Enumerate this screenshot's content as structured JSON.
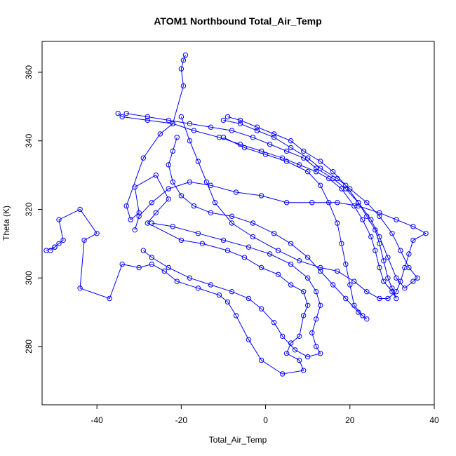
{
  "chart_data": {
    "type": "scatter",
    "title": "ATOM1 Northbound Total_Air_Temp",
    "xlabel": "Total_Air_Temp",
    "ylabel": "Theta (K)",
    "xlim": [
      -53,
      40
    ],
    "ylim": [
      263,
      369
    ],
    "xticks": [
      -40,
      -20,
      0,
      20,
      40
    ],
    "yticks": [
      280,
      300,
      320,
      340,
      360
    ],
    "grid": false,
    "legend": "none",
    "series": [
      {
        "color": "#0000ff",
        "marker": "open-circle",
        "connected": true,
        "points": [
          [
            -19,
            365
          ],
          [
            -19.5,
            363.5
          ],
          [
            -20,
            361
          ],
          [
            -19.5,
            356
          ],
          [
            -22,
            345
          ],
          [
            -25,
            342
          ],
          [
            -29,
            335
          ],
          [
            -33,
            321
          ],
          [
            -32,
            317
          ],
          [
            -30,
            319
          ],
          [
            -31,
            326.5
          ],
          [
            -26,
            330
          ],
          [
            -23,
            323
          ],
          [
            -26,
            319
          ],
          [
            -28,
            316
          ],
          [
            -20,
            311
          ],
          [
            -15,
            310
          ],
          [
            -9,
            308
          ],
          [
            -5,
            306
          ],
          [
            -1,
            303
          ],
          [
            3,
            301
          ],
          [
            6,
            298
          ],
          [
            9,
            296
          ],
          [
            10,
            292
          ],
          [
            9,
            289
          ],
          [
            8,
            283
          ],
          [
            6,
            281
          ],
          [
            5,
            278
          ],
          [
            8,
            276
          ],
          [
            9,
            273
          ],
          [
            4,
            272
          ],
          [
            -1,
            276
          ],
          [
            -4,
            282
          ],
          [
            -7,
            289
          ],
          [
            -9,
            293
          ],
          [
            -11,
            295
          ],
          [
            -16,
            297
          ],
          [
            -21,
            299
          ],
          [
            -24,
            302
          ],
          [
            -27,
            304
          ],
          [
            -30,
            303
          ],
          [
            -34,
            304
          ],
          [
            -37,
            294
          ],
          [
            -44,
            297
          ],
          [
            -43,
            311
          ],
          [
            -40,
            313
          ],
          [
            -44,
            320
          ],
          [
            -49,
            317
          ],
          [
            -48,
            311
          ],
          [
            -49,
            310
          ],
          [
            -51,
            308
          ],
          [
            -50,
            309
          ],
          [
            -52,
            308
          ],
          [
            -50,
            309
          ]
        ]
      },
      {
        "color": "#0000ff",
        "marker": "open-circle",
        "connected": true,
        "points": [
          [
            -35,
            348
          ],
          [
            -34,
            347
          ],
          [
            -28,
            346
          ],
          [
            -22,
            345
          ],
          [
            -17,
            343
          ],
          [
            -11,
            341
          ],
          [
            -6,
            339
          ],
          [
            -1,
            337
          ],
          [
            4,
            335
          ],
          [
            8,
            333
          ],
          [
            12,
            331
          ],
          [
            15,
            329
          ],
          [
            18,
            326
          ],
          [
            21,
            321
          ],
          [
            23,
            317
          ],
          [
            25,
            312
          ],
          [
            26,
            308
          ],
          [
            27,
            303
          ],
          [
            28,
            299
          ],
          [
            30,
            296
          ],
          [
            31,
            294
          ],
          [
            30,
            297
          ],
          [
            29,
            300
          ],
          [
            28,
            305
          ],
          [
            27,
            310
          ],
          [
            26,
            314
          ],
          [
            24,
            318
          ],
          [
            22,
            322
          ],
          [
            19,
            326
          ],
          [
            16,
            329
          ],
          [
            12,
            332
          ],
          [
            9,
            335
          ],
          [
            5,
            337
          ],
          [
            1,
            339
          ],
          [
            -3,
            341
          ],
          [
            -8,
            343
          ],
          [
            -13,
            344
          ],
          [
            -18,
            345
          ],
          [
            -23,
            346
          ],
          [
            -28,
            347
          ],
          [
            -33,
            348
          ]
        ]
      },
      {
        "color": "#0000ff",
        "marker": "open-circle",
        "connected": true,
        "points": [
          [
            -9,
            347
          ],
          [
            -6,
            346
          ],
          [
            -2,
            344
          ],
          [
            2,
            342
          ],
          [
            6,
            340
          ],
          [
            9,
            337
          ],
          [
            13,
            334
          ],
          [
            16,
            331
          ],
          [
            19,
            327
          ],
          [
            22,
            322
          ],
          [
            25,
            317
          ],
          [
            27,
            312
          ],
          [
            29,
            306
          ],
          [
            31,
            300
          ],
          [
            33,
            297
          ],
          [
            35,
            299
          ],
          [
            36,
            300
          ],
          [
            34,
            303
          ],
          [
            32,
            308
          ],
          [
            30,
            313
          ],
          [
            27,
            318
          ],
          [
            24,
            322
          ],
          [
            20,
            326
          ],
          [
            17,
            329
          ],
          [
            13,
            332
          ],
          [
            10,
            335
          ],
          [
            6,
            338
          ],
          [
            2,
            341
          ],
          [
            -2,
            343
          ],
          [
            -6,
            345
          ],
          [
            -10,
            346
          ]
        ]
      },
      {
        "color": "#0000ff",
        "marker": "open-circle",
        "connected": true,
        "points": [
          [
            -27,
            316
          ],
          [
            -22,
            315
          ],
          [
            -16,
            313
          ],
          [
            -10,
            311
          ],
          [
            -4,
            309
          ],
          [
            1,
            307
          ],
          [
            6,
            304
          ],
          [
            10,
            300
          ],
          [
            12,
            296
          ],
          [
            13,
            292
          ],
          [
            12,
            288
          ],
          [
            11,
            284
          ],
          [
            12,
            280
          ],
          [
            13,
            278
          ],
          [
            10,
            277
          ],
          [
            7,
            279
          ],
          [
            4,
            283
          ],
          [
            2,
            287
          ],
          [
            -1,
            291
          ],
          [
            -4,
            294
          ],
          [
            -8,
            296
          ],
          [
            -13,
            298
          ],
          [
            -18,
            300
          ],
          [
            -23,
            303
          ],
          [
            -27,
            306
          ],
          [
            -29,
            308
          ]
        ]
      },
      {
        "color": "#0000ff",
        "marker": "open-circle",
        "connected": true,
        "points": [
          [
            -20,
            347
          ],
          [
            -18,
            340
          ],
          [
            -16,
            334
          ],
          [
            -14,
            328
          ],
          [
            -12,
            322
          ],
          [
            -8,
            316
          ],
          [
            -3,
            312
          ],
          [
            3,
            308
          ],
          [
            8,
            305
          ],
          [
            13,
            303
          ],
          [
            17,
            302
          ],
          [
            21,
            299
          ],
          [
            24,
            296
          ],
          [
            27,
            294
          ],
          [
            29,
            294
          ],
          [
            31,
            296
          ],
          [
            32,
            299
          ],
          [
            33,
            303
          ],
          [
            34,
            307
          ],
          [
            35,
            311
          ],
          [
            38,
            313
          ],
          [
            35,
            315
          ],
          [
            31,
            317
          ],
          [
            27,
            319
          ],
          [
            22,
            321
          ],
          [
            17,
            322
          ],
          [
            11,
            322
          ],
          [
            5,
            322
          ],
          [
            -1,
            324
          ],
          [
            -7,
            325
          ],
          [
            -13,
            327
          ],
          [
            -18,
            328
          ],
          [
            -23,
            326
          ],
          [
            -27,
            322
          ],
          [
            -30,
            318
          ],
          [
            -31,
            314
          ]
        ]
      },
      {
        "color": "#0000ff",
        "marker": "open-circle",
        "connected": true,
        "points": [
          [
            -10,
            341
          ],
          [
            -5,
            338
          ],
          [
            0,
            336
          ],
          [
            5,
            334
          ],
          [
            10,
            331
          ],
          [
            13,
            327
          ],
          [
            15,
            322
          ],
          [
            17,
            316
          ],
          [
            18,
            310
          ],
          [
            19,
            304
          ],
          [
            20,
            298
          ],
          [
            21,
            292
          ],
          [
            23,
            289
          ],
          [
            24,
            288
          ],
          [
            22,
            290
          ],
          [
            19,
            294
          ],
          [
            16,
            298
          ],
          [
            13,
            302
          ],
          [
            10,
            306
          ],
          [
            6,
            310
          ],
          [
            2,
            313
          ],
          [
            -3,
            316
          ],
          [
            -8,
            318
          ],
          [
            -13,
            319
          ],
          [
            -17,
            321
          ],
          [
            -20,
            324
          ],
          [
            -22,
            328
          ],
          [
            -23,
            333
          ],
          [
            -22,
            337
          ],
          [
            -21,
            341
          ]
        ]
      }
    ]
  }
}
